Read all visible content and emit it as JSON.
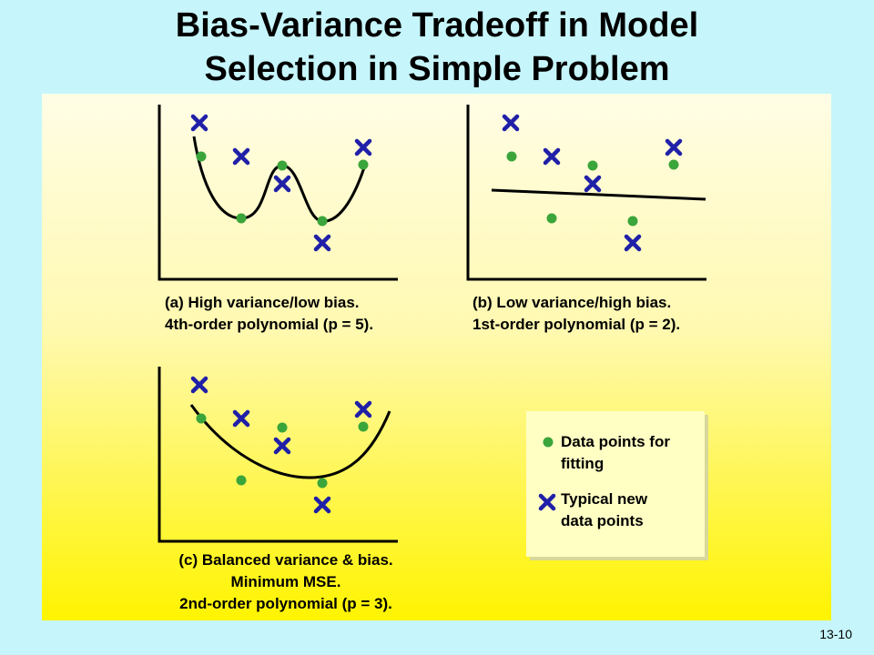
{
  "title_line1": "Bias-Variance Tradeoff in Model",
  "title_line2": "Selection in Simple Problem",
  "panels": [
    {
      "caption": [
        "(a) High variance/low bias.",
        "4th-order polynomial (p = 5)."
      ]
    },
    {
      "caption": [
        "(b) Low variance/high bias.",
        "1st-order polynomial (p = 2)."
      ]
    },
    {
      "caption": [
        "(c) Balanced variance & bias.",
        "Minimum MSE.",
        "2nd-order polynomial (p = 3)."
      ]
    }
  ],
  "legend": {
    "fit_points": [
      "Data points for",
      "fitting"
    ],
    "new_points": [
      "Typical new",
      "data points"
    ]
  },
  "colors": {
    "fit_point": "#3aa53a",
    "new_point": "#1f1fa8",
    "curve": "#000000"
  },
  "page_number": "13-10"
}
